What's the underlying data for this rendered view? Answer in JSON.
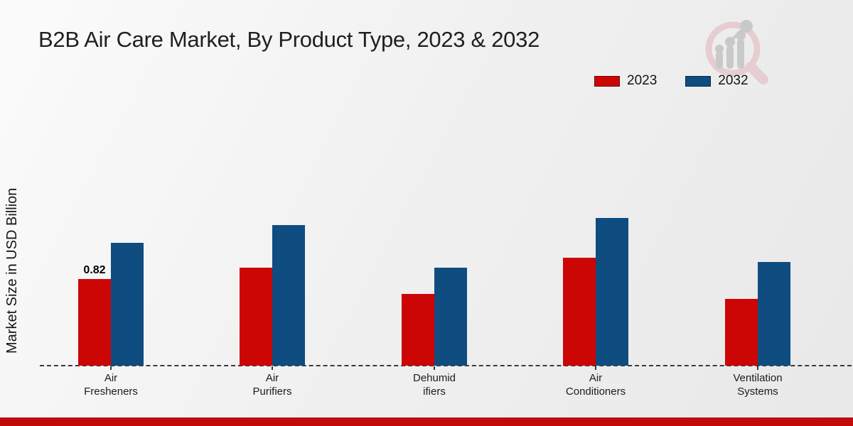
{
  "page_title": "B2B Air Care Market, By Product Type, 2023 & 2032",
  "chart_data": {
    "type": "bar",
    "title": "B2B Air Care Market, By Product Type, 2023 & 2032",
    "xlabel": "",
    "ylabel": "Market Size in USD Billion",
    "categories": [
      "Air Fresheners",
      "Air Purifiers",
      "Dehumidifiers",
      "Air Conditioners",
      "Ventilation Systems"
    ],
    "category_label_lines": [
      [
        "Air",
        "Fresheners"
      ],
      [
        "Air",
        "Purifiers"
      ],
      [
        "Dehumid",
        "ifiers"
      ],
      [
        "Air",
        "Conditioners"
      ],
      [
        "Ventilation",
        "Systems"
      ]
    ],
    "series": [
      {
        "name": "2023",
        "color": "#CC0505",
        "values": [
          0.82,
          0.93,
          0.68,
          1.02,
          0.63
        ]
      },
      {
        "name": "2032",
        "color": "#0F4C80",
        "values": [
          1.16,
          1.33,
          0.93,
          1.4,
          0.98
        ]
      }
    ],
    "annotations": [
      {
        "series": "2023",
        "category_index": 0,
        "text": "0.82"
      }
    ],
    "ylim": [
      0,
      1.6
    ],
    "grid": false,
    "y_axis_ticks_visible": false,
    "legend_position": "top-right",
    "baseline_style": "dashed"
  },
  "legend": {
    "items": [
      {
        "label": "2023",
        "color": "#CC0505"
      },
      {
        "label": "2032",
        "color": "#0F4C80"
      }
    ]
  },
  "colors": {
    "series_2023": "#CC0505",
    "series_2032": "#0F4C80",
    "footer_bar": "#C00B0D",
    "baseline": "#3B3B3B",
    "background": "#EFEFEF",
    "watermark_pink": "#E6CDD1",
    "watermark_gray": "#C9C9C9"
  },
  "watermark": {
    "name": "magnifier-bar-chart-logo"
  }
}
